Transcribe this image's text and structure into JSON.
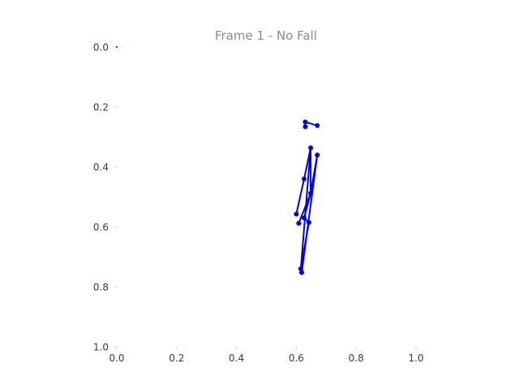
{
  "chart_data": {
    "type": "scatter",
    "title": "Frame 1 - No Fall",
    "xlabel": "",
    "ylabel": "",
    "xlim": [
      0.0,
      1.0
    ],
    "ylim": [
      1.0,
      0.0
    ],
    "y_inverted": true,
    "grid": false,
    "xticks": [
      "0.0",
      "0.2",
      "0.4",
      "0.6",
      "0.8",
      "1.0"
    ],
    "yticks": [
      "0.0",
      "0.2",
      "0.4",
      "0.6",
      "0.8",
      "1.0"
    ],
    "color": "#0000ee",
    "points": [
      {
        "x": 0.0,
        "y": 0.0
      },
      {
        "x": 0.63,
        "y": 0.25
      },
      {
        "x": 0.67,
        "y": 0.262
      },
      {
        "x": 0.63,
        "y": 0.266
      },
      {
        "x": 0.648,
        "y": 0.336
      },
      {
        "x": 0.67,
        "y": 0.36
      },
      {
        "x": 0.626,
        "y": 0.44
      },
      {
        "x": 0.648,
        "y": 0.488
      },
      {
        "x": 0.6,
        "y": 0.557
      },
      {
        "x": 0.608,
        "y": 0.588
      },
      {
        "x": 0.626,
        "y": 0.57
      },
      {
        "x": 0.642,
        "y": 0.585
      },
      {
        "x": 0.615,
        "y": 0.74
      },
      {
        "x": 0.618,
        "y": 0.752
      }
    ],
    "segments": [
      [
        1,
        2
      ],
      [
        1,
        3
      ],
      [
        4,
        6
      ],
      [
        6,
        8
      ],
      [
        4,
        7
      ],
      [
        7,
        9
      ],
      [
        5,
        7
      ],
      [
        7,
        10
      ],
      [
        4,
        12
      ],
      [
        5,
        13
      ],
      [
        10,
        11
      ],
      [
        11,
        12
      ]
    ]
  }
}
